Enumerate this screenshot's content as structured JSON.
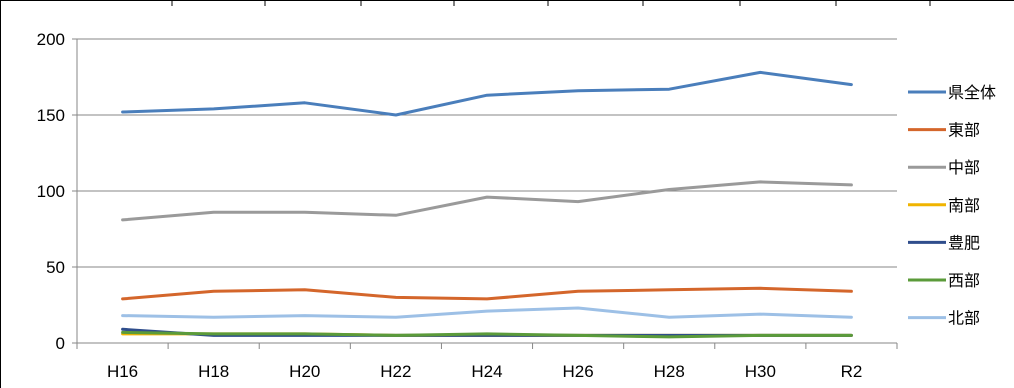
{
  "chart_data": {
    "type": "line",
    "categories": [
      "H16",
      "H18",
      "H20",
      "H22",
      "H24",
      "H26",
      "H28",
      "H30",
      "R2"
    ],
    "ylim": [
      0,
      200
    ],
    "yticks": [
      0,
      50,
      100,
      150,
      200
    ],
    "grid": true,
    "legend_position": "right",
    "series": [
      {
        "name": "県全体",
        "color": "#4a7ebb",
        "values": [
          152,
          154,
          158,
          150,
          163,
          166,
          167,
          178,
          170
        ]
      },
      {
        "name": "東部",
        "color": "#d4662b",
        "values": [
          29,
          34,
          35,
          30,
          29,
          34,
          35,
          36,
          34
        ]
      },
      {
        "name": "中部",
        "color": "#9a9a9a",
        "values": [
          81,
          86,
          86,
          84,
          96,
          93,
          101,
          106,
          104
        ]
      },
      {
        "name": "南部",
        "color": "#f0b400",
        "values": [
          6,
          6,
          6,
          5,
          5,
          5,
          5,
          5,
          5
        ]
      },
      {
        "name": "豊肥",
        "color": "#2f4d8c",
        "values": [
          9,
          5,
          5,
          5,
          5,
          5,
          5,
          5,
          5
        ]
      },
      {
        "name": "西部",
        "color": "#5b9b3a",
        "values": [
          7,
          6,
          6,
          5,
          6,
          5,
          4,
          5,
          5
        ]
      },
      {
        "name": "北部",
        "color": "#9dc0e6",
        "values": [
          18,
          17,
          18,
          17,
          21,
          23,
          17,
          19,
          17
        ]
      }
    ]
  }
}
